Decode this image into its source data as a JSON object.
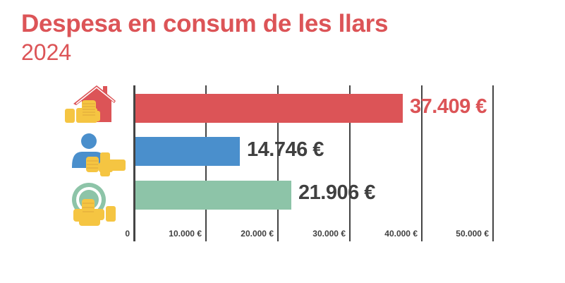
{
  "header": {
    "title": "Despesa en consum de les llars",
    "subtitle": "2024"
  },
  "colors": {
    "title": "#dc5457",
    "axis": "#444444",
    "text": "#404040",
    "coin": "#f5c542"
  },
  "categories": [
    {
      "icon": "house-coins-icon",
      "value_label": "37.409 €",
      "color": "#dc5457",
      "label_color": "#dc5457"
    },
    {
      "icon": "person-coins-icon",
      "value_label": "14.746 €",
      "color": "#4a8fcc",
      "label_color": "#404040"
    },
    {
      "icon": "ring-coins-icon",
      "value_label": "21.906 €",
      "color": "#8dc4a8",
      "label_color": "#404040"
    }
  ],
  "axis": {
    "ticks": [
      "0",
      "10.000 €",
      "20.000 €",
      "30.000 €",
      "40.000 €",
      "50.000 €"
    ]
  },
  "chart_data": {
    "type": "bar",
    "orientation": "horizontal",
    "title": "Despesa en consum de les llars",
    "subtitle": "2024",
    "categories": [
      "Llars (house icon)",
      "Persona (person icon)",
      "Unitat de consum (ring icon)"
    ],
    "values": [
      37409,
      14746,
      21906
    ],
    "value_labels": [
      "37.409 €",
      "14.746 €",
      "21.906 €"
    ],
    "colors": [
      "#dc5457",
      "#4a8fcc",
      "#8dc4a8"
    ],
    "xlabel": "",
    "ylabel": "",
    "xlim": [
      0,
      50000
    ],
    "xticks": [
      0,
      10000,
      20000,
      30000,
      40000,
      50000
    ],
    "xtick_labels": [
      "0",
      "10.000 €",
      "20.000 €",
      "30.000 €",
      "40.000 €",
      "50.000 €"
    ],
    "grid": true,
    "legend": "none (icons used as category markers)"
  }
}
